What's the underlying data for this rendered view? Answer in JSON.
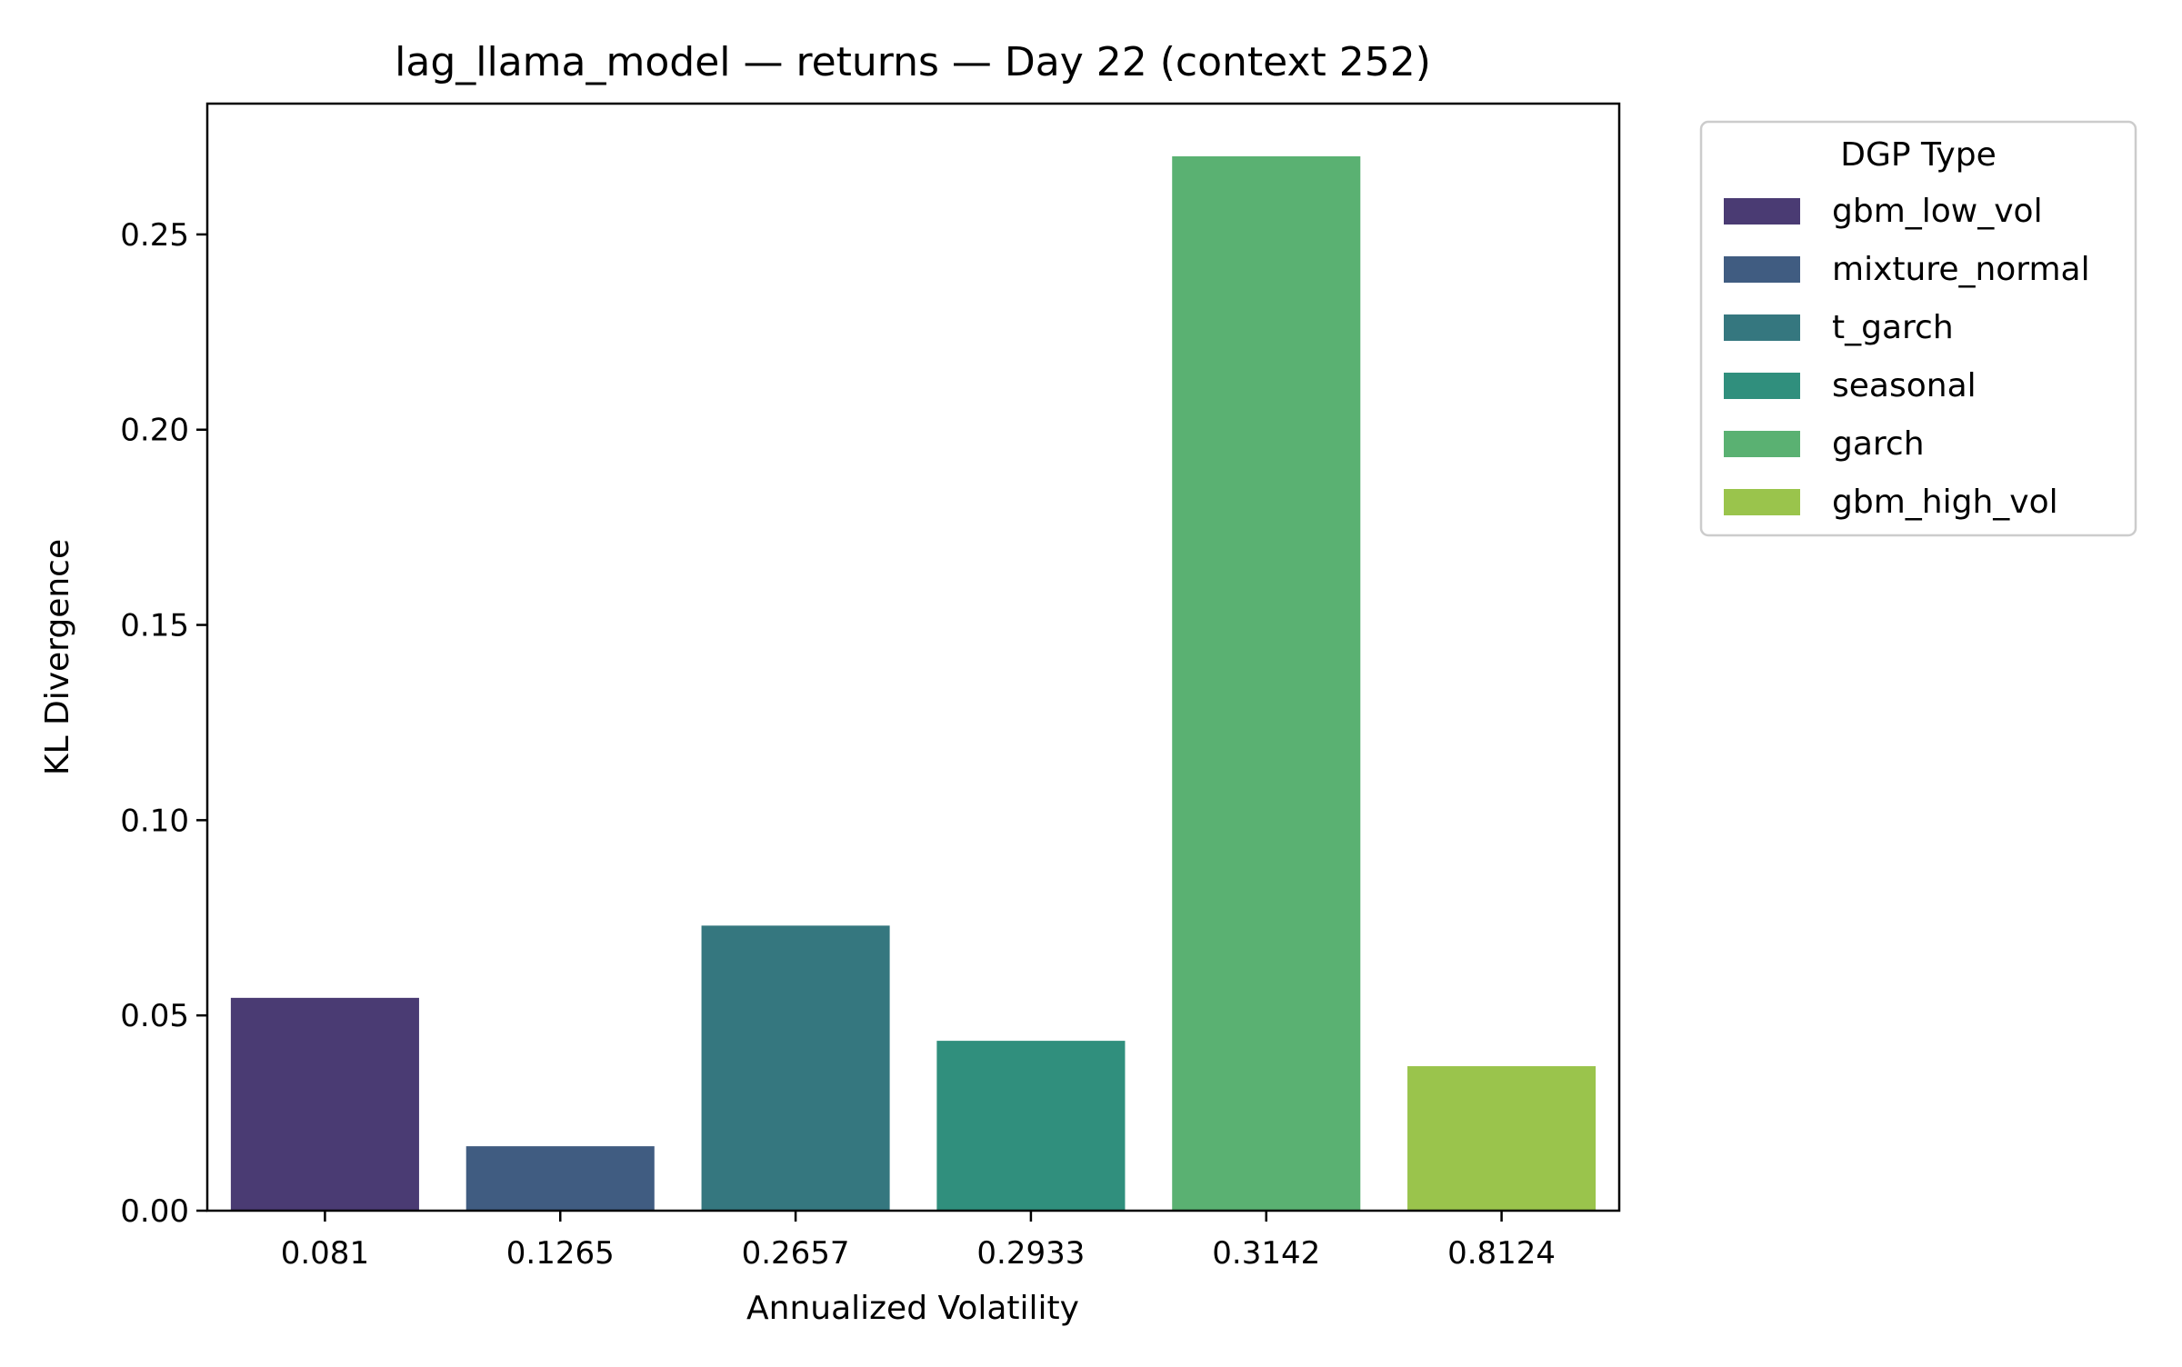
{
  "chart_data": {
    "type": "bar",
    "title": "lag_llama_model — returns — Day 22 (context 252)",
    "xlabel": "Annualized Volatility",
    "ylabel": "KL Divergence",
    "ylim": [
      0,
      0.2835
    ],
    "yticks": [
      "0.00",
      "0.05",
      "0.10",
      "0.15",
      "0.20",
      "0.25"
    ],
    "categories": [
      "0.081",
      "0.1265",
      "0.2657",
      "0.2933",
      "0.3142",
      "0.8124"
    ],
    "values": [
      0.0545,
      0.0165,
      0.073,
      0.0435,
      0.27,
      0.037
    ],
    "series_names": [
      "gbm_low_vol",
      "mixture_normal",
      "t_garch",
      "seasonal",
      "garch",
      "gbm_high_vol"
    ],
    "colors": [
      "#4a3b73",
      "#405c81",
      "#35777f",
      "#308f7d",
      "#5ab172",
      "#9ac44c"
    ],
    "grid": false,
    "legend": {
      "title": "DGP Type",
      "placement": "outside-top-right",
      "entries": [
        "gbm_low_vol",
        "mixture_normal",
        "t_garch",
        "seasonal",
        "garch",
        "gbm_high_vol"
      ]
    }
  }
}
